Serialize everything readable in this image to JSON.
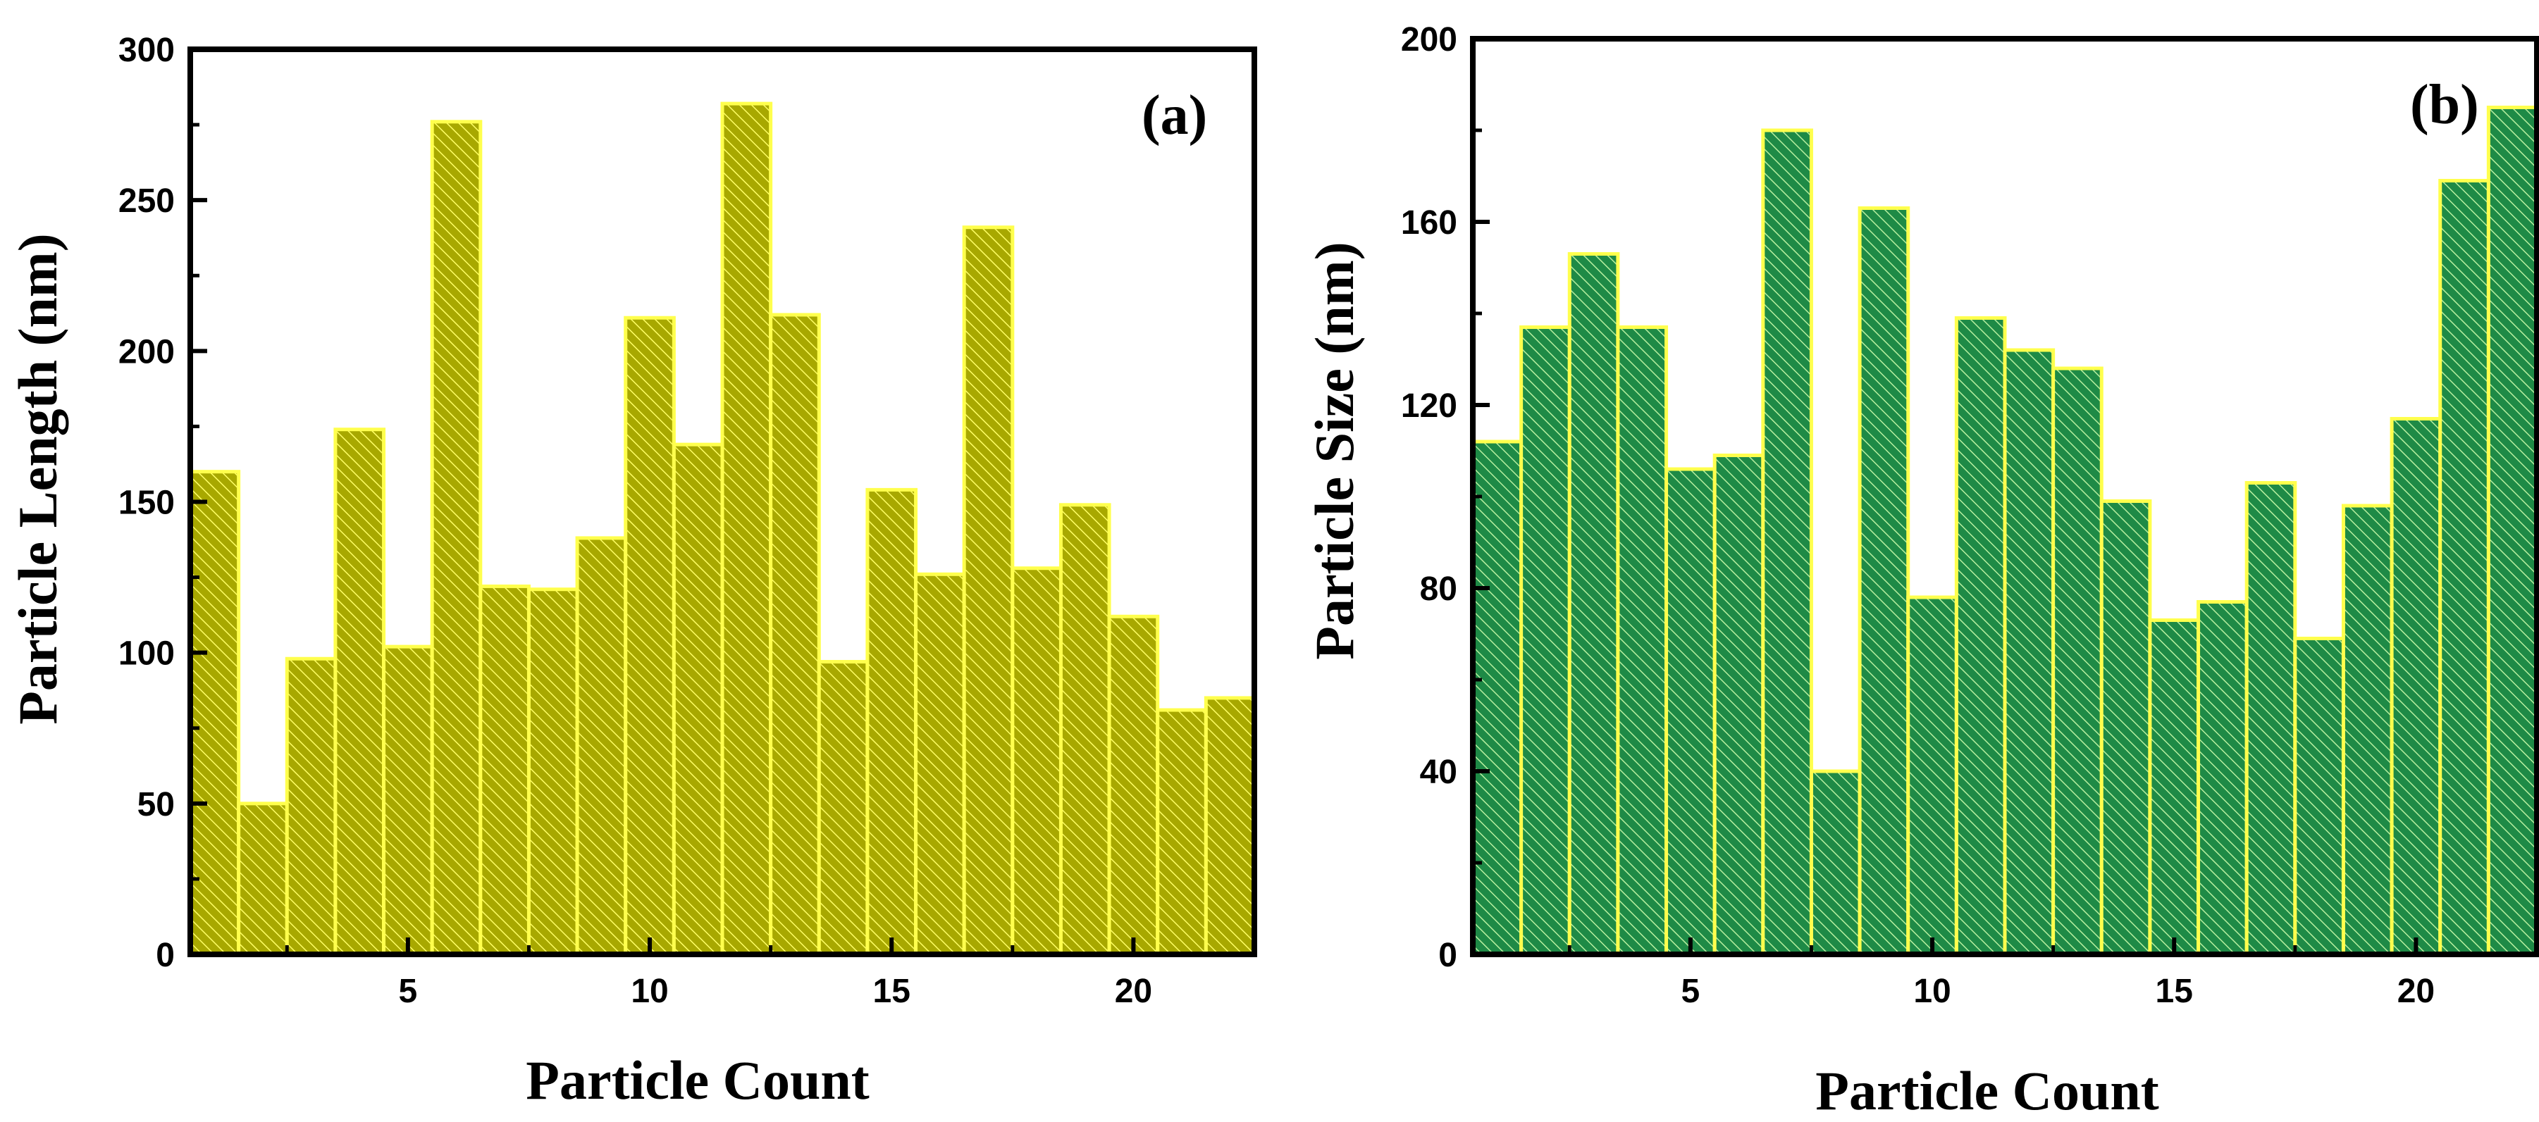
{
  "chart_data": [
    {
      "type": "bar",
      "panel_label": "(a)",
      "xlabel": "Particle Count",
      "ylabel": "Particle Length (nm)",
      "ylim": [
        0,
        300
      ],
      "xlim": [
        0.5,
        22.5
      ],
      "yticks": [
        "0",
        "50",
        "100",
        "150",
        "200",
        "250",
        "300"
      ],
      "xticks": [
        "5",
        "10",
        "15",
        "20"
      ],
      "categories": [
        1,
        2,
        3,
        4,
        5,
        6,
        7,
        8,
        9,
        10,
        11,
        12,
        13,
        14,
        15,
        16,
        17,
        18,
        19,
        20,
        21,
        22
      ],
      "values": [
        160,
        50,
        98,
        174,
        102,
        276,
        122,
        121,
        138,
        211,
        169,
        282,
        212,
        97,
        154,
        126,
        241,
        128,
        149,
        112,
        81,
        85
      ],
      "fill_color": "#a8a800",
      "edge_color": "#ffff4d"
    },
    {
      "type": "bar",
      "panel_label": "(b)",
      "xlabel": "Particle Count",
      "ylabel": "Particle Size (nm)",
      "ylim": [
        0,
        200
      ],
      "xlim": [
        0.5,
        22.5
      ],
      "yticks": [
        "0",
        "40",
        "80",
        "120",
        "160",
        "200"
      ],
      "xticks": [
        "5",
        "10",
        "15",
        "20"
      ],
      "categories": [
        1,
        2,
        3,
        4,
        5,
        6,
        7,
        8,
        9,
        10,
        11,
        12,
        13,
        14,
        15,
        16,
        17,
        18,
        19,
        20,
        21,
        22
      ],
      "values": [
        112,
        137,
        153,
        137,
        106,
        109,
        180,
        40,
        163,
        78,
        139,
        132,
        128,
        99,
        73,
        77,
        103,
        69,
        98,
        117,
        169,
        185
      ],
      "fill_color": "#1e8a46",
      "edge_color": "#ffff4d"
    }
  ]
}
